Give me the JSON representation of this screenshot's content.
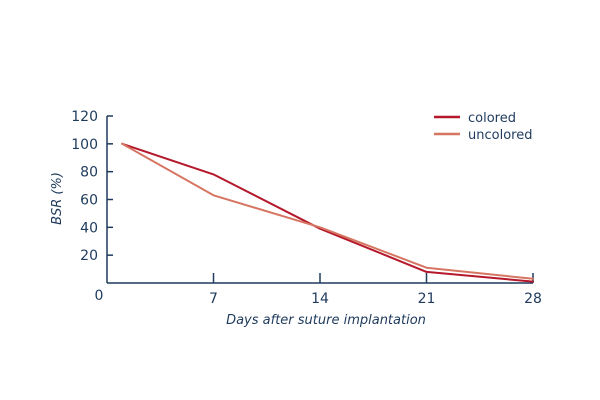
{
  "chart_data": {
    "type": "line",
    "xlabel": "Days after suture implantation",
    "ylabel": "BSR (%)",
    "x_ticks": [
      0,
      7,
      14,
      21,
      28
    ],
    "y_ticks": [
      20,
      40,
      60,
      80,
      100,
      120
    ],
    "y_zero_label": "0",
    "xlim": [
      0,
      28
    ],
    "ylim": [
      0,
      120
    ],
    "grid": false,
    "legend_position": "top-right",
    "series": [
      {
        "name": "colored",
        "color": "#b5182b",
        "x": [
          1,
          7,
          14,
          21,
          28
        ],
        "y": [
          100,
          78,
          39,
          8,
          1
        ]
      },
      {
        "name": "uncolored",
        "color": "#d67562",
        "x": [
          1,
          7,
          14,
          21,
          28
        ],
        "y": [
          100,
          63,
          40,
          11,
          3
        ]
      }
    ]
  }
}
